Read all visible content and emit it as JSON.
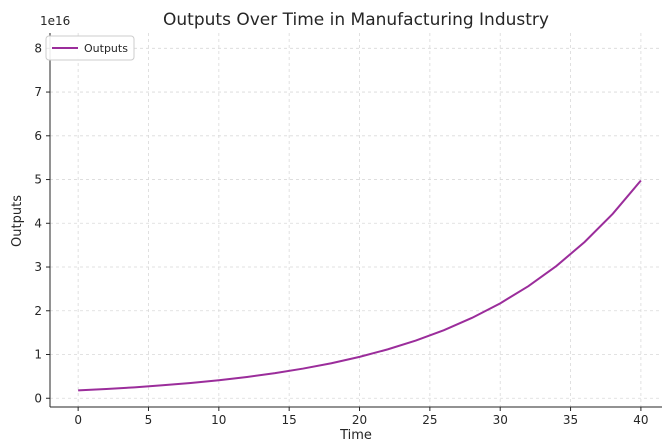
{
  "chart_data": {
    "type": "line",
    "title": "Outputs Over Time in Manufacturing Industry",
    "xlabel": "Time",
    "ylabel": "Outputs",
    "offset_text": "1e16",
    "xlim": [
      -2,
      41.5
    ],
    "ylim": [
      -0.2,
      8.35
    ],
    "x_ticks": [
      0,
      5,
      10,
      15,
      20,
      25,
      30,
      35,
      40
    ],
    "y_ticks": [
      0,
      1,
      2,
      3,
      4,
      5,
      6,
      7,
      8
    ],
    "grid": true,
    "legend_position": "top-left",
    "series": [
      {
        "name": "Outputs",
        "color": "#9b2d9b",
        "x": [
          0,
          2,
          4,
          6,
          8,
          10,
          12,
          14,
          16,
          18,
          20,
          22,
          24,
          26,
          28,
          30,
          32,
          34,
          36,
          38,
          40
        ],
        "y": [
          0.18,
          0.212,
          0.25,
          0.296,
          0.349,
          0.412,
          0.487,
          0.575,
          0.679,
          0.801,
          0.946,
          1.117,
          1.319,
          1.557,
          1.838,
          2.17,
          2.562,
          3.025,
          3.572,
          4.217,
          4.979
        ]
      }
    ]
  }
}
